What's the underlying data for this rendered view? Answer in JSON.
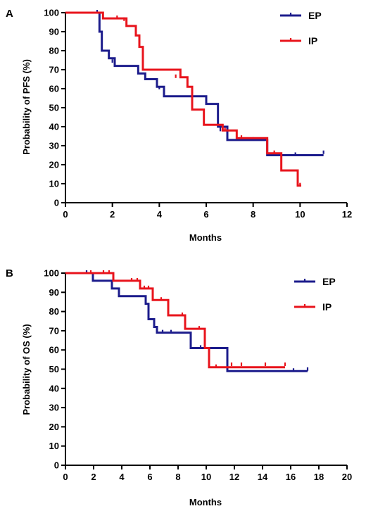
{
  "chart_data": [
    {
      "type": "line",
      "subtype": "kaplan-meier-step",
      "panel_label": "A",
      "title": "",
      "xlabel": "Months",
      "ylabel": "Probability of PFS (%)",
      "xlim": [
        0,
        12
      ],
      "ylim": [
        0,
        100
      ],
      "x_ticks": [
        "0",
        "2",
        "4",
        "6",
        "8",
        "10",
        "12"
      ],
      "y_ticks": [
        "0",
        "10",
        "20",
        "30",
        "40",
        "50",
        "60",
        "70",
        "80",
        "90",
        "100"
      ],
      "grid": false,
      "legend_position": "top-right",
      "series": [
        {
          "name": "EP",
          "color": "#1c1c8c",
          "steps": [
            [
              0,
              100
            ],
            [
              1.35,
              100
            ],
            [
              1.45,
              90
            ],
            [
              1.55,
              80
            ],
            [
              1.85,
              76
            ],
            [
              2.1,
              72
            ],
            [
              3.1,
              68
            ],
            [
              3.4,
              65
            ],
            [
              3.9,
              61
            ],
            [
              4.2,
              56
            ],
            [
              6.0,
              52
            ],
            [
              6.5,
              40
            ],
            [
              6.9,
              33
            ],
            [
              8.6,
              25
            ],
            [
              11.0,
              25
            ]
          ],
          "censored": [
            [
              1.35,
              100
            ],
            [
              2.0,
              74
            ],
            [
              4.0,
              60
            ],
            [
              6.6,
              38
            ],
            [
              8.0,
              33
            ],
            [
              9.8,
              25
            ],
            [
              11.0,
              26
            ]
          ]
        },
        {
          "name": "IP",
          "color": "#e8141c",
          "steps": [
            [
              0,
              100
            ],
            [
              1.5,
              100
            ],
            [
              1.6,
              97
            ],
            [
              2.6,
              93
            ],
            [
              3.0,
              88
            ],
            [
              3.15,
              82
            ],
            [
              3.3,
              70
            ],
            [
              4.9,
              66
            ],
            [
              5.2,
              61
            ],
            [
              5.4,
              49
            ],
            [
              5.9,
              41
            ],
            [
              6.7,
              38
            ],
            [
              7.3,
              34
            ],
            [
              8.6,
              26
            ],
            [
              9.2,
              17
            ],
            [
              9.9,
              9
            ],
            [
              10.05,
              9
            ]
          ],
          "censored": [
            [
              2.2,
              97
            ],
            [
              2.5,
              96
            ],
            [
              4.7,
              66
            ],
            [
              6.8,
              38
            ],
            [
              7.5,
              34
            ],
            [
              8.9,
              26
            ],
            [
              10.0,
              9
            ]
          ]
        }
      ]
    },
    {
      "type": "line",
      "subtype": "kaplan-meier-step",
      "panel_label": "B",
      "title": "",
      "xlabel": "Months",
      "ylabel": "Probability of OS (%)",
      "xlim": [
        0,
        20
      ],
      "ylim": [
        0,
        100
      ],
      "x_ticks": [
        "0",
        "2",
        "4",
        "6",
        "8",
        "10",
        "12",
        "14",
        "16",
        "18",
        "20"
      ],
      "y_ticks": [
        "0",
        "10",
        "20",
        "30",
        "40",
        "50",
        "60",
        "70",
        "80",
        "90",
        "100"
      ],
      "grid": false,
      "legend_position": "top-right",
      "series": [
        {
          "name": "EP",
          "color": "#1c1c8c",
          "steps": [
            [
              0,
              100
            ],
            [
              1.9,
              100
            ],
            [
              1.95,
              96
            ],
            [
              3.3,
              92
            ],
            [
              3.8,
              88
            ],
            [
              5.7,
              84
            ],
            [
              5.9,
              76
            ],
            [
              6.3,
              72
            ],
            [
              6.5,
              69
            ],
            [
              8.9,
              61
            ],
            [
              11.5,
              49
            ],
            [
              17.2,
              49
            ]
          ],
          "censored": [
            [
              1.5,
              100
            ],
            [
              6.9,
              69
            ],
            [
              7.5,
              69
            ],
            [
              9.6,
              61
            ],
            [
              16.2,
              49
            ],
            [
              17.2,
              49.5
            ]
          ]
        },
        {
          "name": "IP",
          "color": "#e8141c",
          "steps": [
            [
              0,
              100
            ],
            [
              2.1,
              100
            ],
            [
              3.4,
              96
            ],
            [
              5.3,
              92
            ],
            [
              6.2,
              86
            ],
            [
              7.3,
              78
            ],
            [
              8.5,
              71
            ],
            [
              9.9,
              61
            ],
            [
              10.2,
              51
            ],
            [
              15.6,
              51
            ]
          ],
          "censored": [
            [
              1.8,
              100
            ],
            [
              2.7,
              100
            ],
            [
              3.1,
              100
            ],
            [
              4.7,
              96
            ],
            [
              5.1,
              96
            ],
            [
              5.6,
              92
            ],
            [
              5.9,
              92
            ],
            [
              6.8,
              86
            ],
            [
              8.3,
              78
            ],
            [
              9.5,
              71
            ],
            [
              10.7,
              51
            ],
            [
              11.8,
              52
            ],
            [
              12.5,
              52
            ],
            [
              14.2,
              52
            ],
            [
              15.6,
              52
            ]
          ]
        }
      ]
    }
  ]
}
